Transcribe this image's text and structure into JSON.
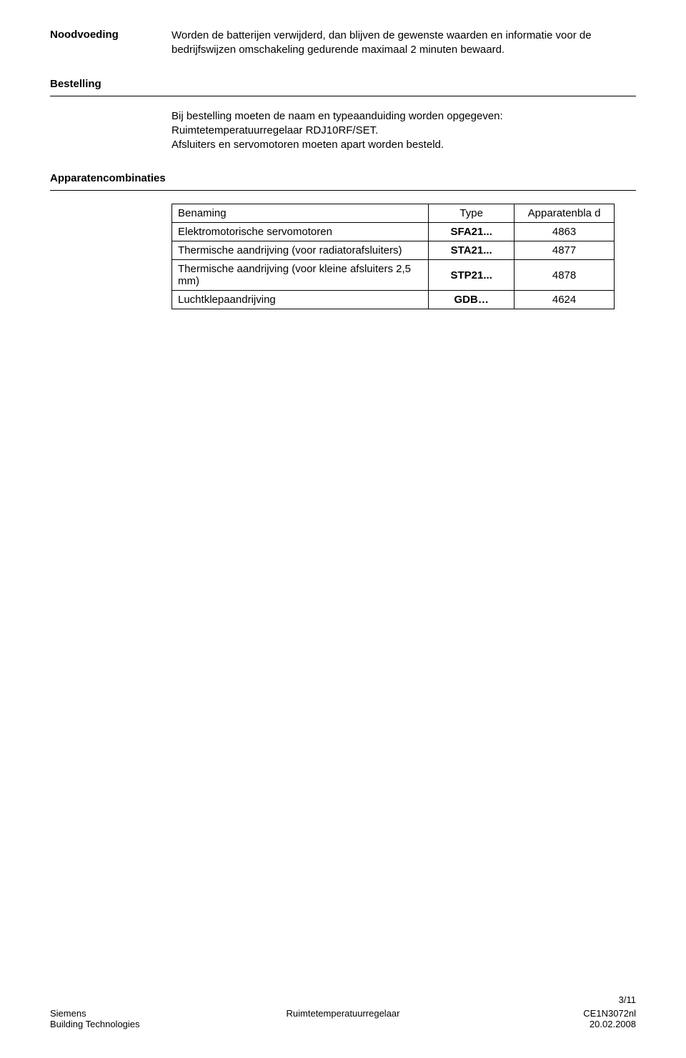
{
  "sections": {
    "noodvoeding": {
      "heading": "Noodvoeding",
      "text": "Worden de batterijen verwijderd, dan blijven de gewenste waarden en informatie voor de bedrijfswijzen omschakeling gedurende maximaal 2 minuten bewaard."
    },
    "bestelling": {
      "heading": "Bestelling",
      "line1": "Bij bestelling moeten de naam en typeaanduiding worden opgegeven:",
      "line2": "Ruimtetemperatuurregelaar RDJ10RF/SET.",
      "line3": "Afsluiters en servomotoren moeten apart worden besteld."
    },
    "apparaten": {
      "heading": "Apparatencombinaties"
    }
  },
  "table": {
    "headers": {
      "name": "Benaming",
      "type": "Type",
      "app": "Apparatenbla d"
    },
    "rows": [
      {
        "name": "Elektromotorische servomotoren",
        "type": "SFA21...",
        "app": "4863"
      },
      {
        "name": "Thermische aandrijving (voor radiatorafsluiters)",
        "type": "STA21...",
        "app": "4877"
      },
      {
        "name": "Thermische aandrijving (voor kleine afsluiters 2,5 mm)",
        "type": "STP21...",
        "app": "4878"
      },
      {
        "name": "Luchtklepaandrijving",
        "type": "GDB…",
        "app": "4624"
      }
    ]
  },
  "footer": {
    "page": "3/11",
    "left1": "Siemens",
    "left2": "Building Technologies",
    "center": "Ruimtetemperatuurregelaar",
    "right1": "CE1N3072nl",
    "right2": "20.02.2008"
  }
}
